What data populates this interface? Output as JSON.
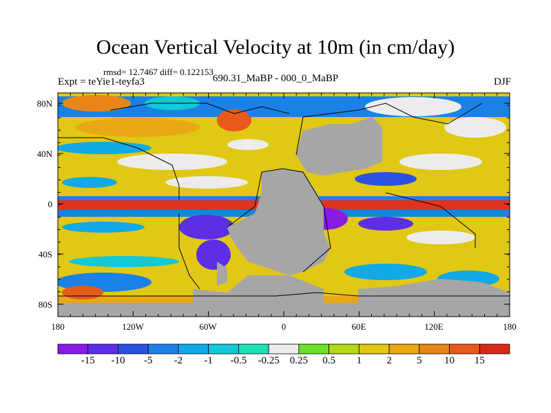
{
  "title": "Ocean Vertical Velocity at 10m (in cm/day)",
  "stats": "rmsd= 12.7467 diff= 0.122153",
  "expt": "Expt = teYie1-teyfa3",
  "period": "690.31_MaBP - 000_0_MaBP",
  "season": "DJF",
  "lat_labels": [
    "80N",
    "40N",
    "0",
    "40S",
    "80S"
  ],
  "lon_labels": [
    "180",
    "120W",
    "60W",
    "0",
    "60E",
    "120E",
    "180"
  ],
  "colorbar": {
    "labels": [
      "-15",
      "-10",
      "-5",
      "-2",
      "-1",
      "-0.5",
      "-0.25",
      "0.25",
      "0.5",
      "1",
      "2",
      "5",
      "10",
      "15"
    ],
    "colors": [
      "#8a1ae6",
      "#5c2ee6",
      "#2a52e0",
      "#1a82e6",
      "#12a9e6",
      "#14c8d6",
      "#1ee0b8",
      "#ececec",
      "#6ee02a",
      "#b6d81a",
      "#e0c814",
      "#e8a814",
      "#e8861a",
      "#e85a1a",
      "#d82a1a"
    ]
  },
  "colors": {
    "land": "#a6a6a6",
    "equatorial_band": "#e0321e",
    "frame": "#000000"
  }
}
